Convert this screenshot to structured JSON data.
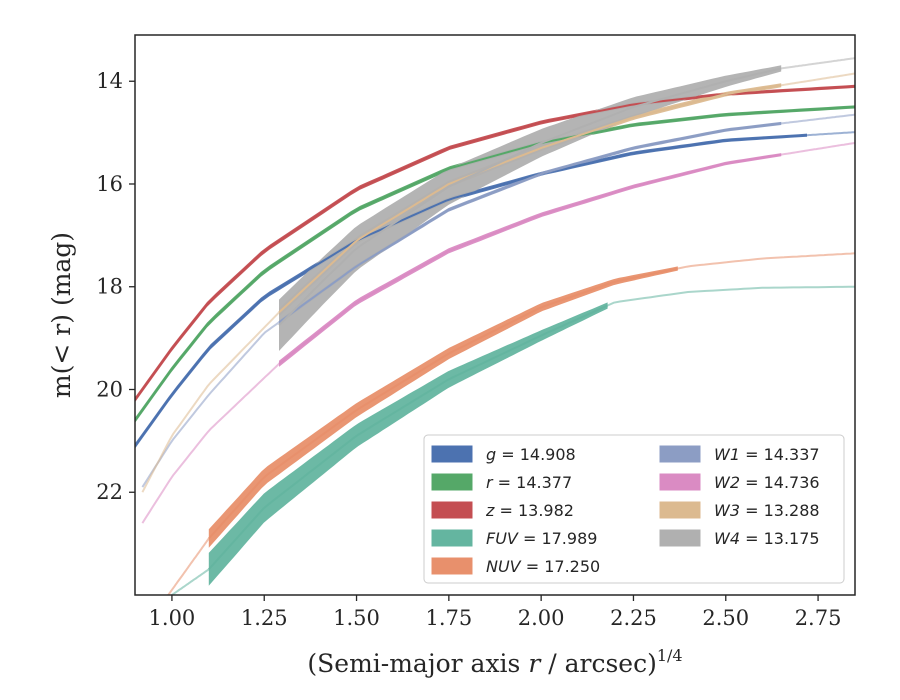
{
  "chart_data": {
    "type": "line",
    "xlabel": "(Semi-major axis r / arcsec)",
    "xlabel_italic": "r",
    "xlabel_exponent": "1/4",
    "ylabel": "m(< r) (mag)",
    "xlim": [
      0.9,
      2.85
    ],
    "ylim": [
      24.0,
      13.1
    ],
    "y_inverted": true,
    "grid": false,
    "legend_position": "lower-right",
    "x_ticks": [
      "1.00",
      "1.25",
      "1.50",
      "1.75",
      "2.00",
      "2.25",
      "2.50",
      "2.75"
    ],
    "y_ticks": [
      "14",
      "16",
      "18",
      "20",
      "22"
    ],
    "legend": [
      {
        "name": "g",
        "value": "14.908"
      },
      {
        "name": "r",
        "value": "14.377"
      },
      {
        "name": "z",
        "value": "13.982"
      },
      {
        "name": "FUV",
        "value": "17.989"
      },
      {
        "name": "NUV",
        "value": "17.250"
      },
      {
        "name": "W1",
        "value": "14.337"
      },
      {
        "name": "W2",
        "value": "14.736"
      },
      {
        "name": "W3",
        "value": "13.288"
      },
      {
        "name": "W4",
        "value": "13.175"
      }
    ],
    "series": [
      {
        "name": "g",
        "color": "#4c72b0",
        "points": [
          [
            0.9,
            21.1
          ],
          [
            1.0,
            20.1
          ],
          [
            1.1,
            19.2
          ],
          [
            1.25,
            18.2
          ],
          [
            1.5,
            17.1
          ],
          [
            1.75,
            16.3
          ],
          [
            2.0,
            15.8
          ],
          [
            2.25,
            15.4
          ],
          [
            2.5,
            15.15
          ],
          [
            2.72,
            15.05
          ]
        ],
        "solid_to": 2.72,
        "ext_to": 2.85,
        "band": [
          0.05,
          0.03
        ]
      },
      {
        "name": "r",
        "color": "#55a868",
        "points": [
          [
            0.9,
            20.6
          ],
          [
            1.0,
            19.6
          ],
          [
            1.1,
            18.7
          ],
          [
            1.25,
            17.7
          ],
          [
            1.5,
            16.5
          ],
          [
            1.75,
            15.7
          ],
          [
            2.0,
            15.2
          ],
          [
            2.25,
            14.85
          ],
          [
            2.5,
            14.65
          ],
          [
            2.85,
            14.5
          ]
        ],
        "solid_to": 2.85,
        "ext_to": 2.85,
        "band": [
          0.05,
          0.03
        ]
      },
      {
        "name": "z",
        "color": "#c44e52",
        "points": [
          [
            0.9,
            20.2
          ],
          [
            1.0,
            19.2
          ],
          [
            1.1,
            18.3
          ],
          [
            1.25,
            17.3
          ],
          [
            1.5,
            16.1
          ],
          [
            1.75,
            15.3
          ],
          [
            2.0,
            14.8
          ],
          [
            2.25,
            14.45
          ],
          [
            2.5,
            14.25
          ],
          [
            2.85,
            14.1
          ]
        ],
        "solid_to": 2.85,
        "ext_to": 2.85,
        "band": [
          0.05,
          0.03
        ]
      },
      {
        "name": "FUV",
        "color": "#64b5a0",
        "points": [
          [
            0.98,
            24.1
          ],
          [
            1.1,
            23.5
          ],
          [
            1.25,
            22.3
          ],
          [
            1.5,
            20.9
          ],
          [
            1.75,
            19.8
          ],
          [
            2.0,
            18.95
          ],
          [
            2.2,
            18.3
          ],
          [
            2.4,
            18.1
          ],
          [
            2.6,
            18.02
          ],
          [
            2.85,
            18.0
          ]
        ],
        "solid_from": 1.1,
        "solid_to": 2.18,
        "ext_to": 2.85,
        "band": [
          0.32,
          0.06
        ]
      },
      {
        "name": "NUV",
        "color": "#e8906c",
        "points": [
          [
            0.98,
            24.1
          ],
          [
            1.1,
            22.9
          ],
          [
            1.25,
            21.7
          ],
          [
            1.5,
            20.4
          ],
          [
            1.75,
            19.3
          ],
          [
            2.0,
            18.4
          ],
          [
            2.2,
            17.9
          ],
          [
            2.4,
            17.6
          ],
          [
            2.6,
            17.45
          ],
          [
            2.85,
            17.35
          ]
        ],
        "solid_from": 1.1,
        "solid_to": 2.37,
        "ext_to": 2.85,
        "band": [
          0.18,
          0.04
        ]
      },
      {
        "name": "W1",
        "color": "#8c9dc4",
        "points": [
          [
            0.92,
            21.9
          ],
          [
            1.0,
            21.0
          ],
          [
            1.1,
            20.1
          ],
          [
            1.25,
            18.9
          ],
          [
            1.5,
            17.6
          ],
          [
            1.75,
            16.5
          ],
          [
            2.0,
            15.8
          ],
          [
            2.25,
            15.3
          ],
          [
            2.5,
            14.95
          ],
          [
            2.85,
            14.65
          ]
        ],
        "solid_from": 1.29,
        "solid_to": 2.65,
        "ext_to": 2.85,
        "band": [
          0.04,
          0.03
        ]
      },
      {
        "name": "W2",
        "color": "#da8bc3",
        "points": [
          [
            0.92,
            22.6
          ],
          [
            1.0,
            21.7
          ],
          [
            1.1,
            20.8
          ],
          [
            1.29,
            19.5
          ],
          [
            1.5,
            18.3
          ],
          [
            1.75,
            17.3
          ],
          [
            2.0,
            16.6
          ],
          [
            2.25,
            16.05
          ],
          [
            2.5,
            15.6
          ],
          [
            2.85,
            15.2
          ]
        ],
        "solid_from": 1.29,
        "solid_to": 2.65,
        "ext_to": 2.85,
        "band": [
          0.06,
          0.03
        ]
      },
      {
        "name": "W3",
        "color": "#dcba90",
        "points": [
          [
            0.92,
            22.0
          ],
          [
            1.0,
            20.9
          ],
          [
            1.1,
            19.9
          ],
          [
            1.29,
            18.5
          ],
          [
            1.5,
            17.1
          ],
          [
            1.75,
            16.0
          ],
          [
            2.0,
            15.3
          ],
          [
            2.25,
            14.7
          ],
          [
            2.5,
            14.25
          ],
          [
            2.85,
            13.85
          ]
        ],
        "solid_from": 1.29,
        "solid_to": 2.65,
        "ext_to": 2.85,
        "band": [
          0.08,
          0.04
        ]
      },
      {
        "name": "W4",
        "color": "#b0b0b0",
        "points": [
          [
            1.29,
            18.75
          ],
          [
            1.4,
            17.95
          ],
          [
            1.5,
            17.25
          ],
          [
            1.75,
            16.05
          ],
          [
            2.0,
            15.2
          ],
          [
            2.25,
            14.5
          ],
          [
            2.5,
            14.0
          ],
          [
            2.65,
            13.75
          ],
          [
            2.85,
            13.55
          ]
        ],
        "solid_from": 1.29,
        "solid_to": 2.65,
        "ext_to": 2.85,
        "band": [
          0.5,
          0.06
        ]
      }
    ]
  }
}
